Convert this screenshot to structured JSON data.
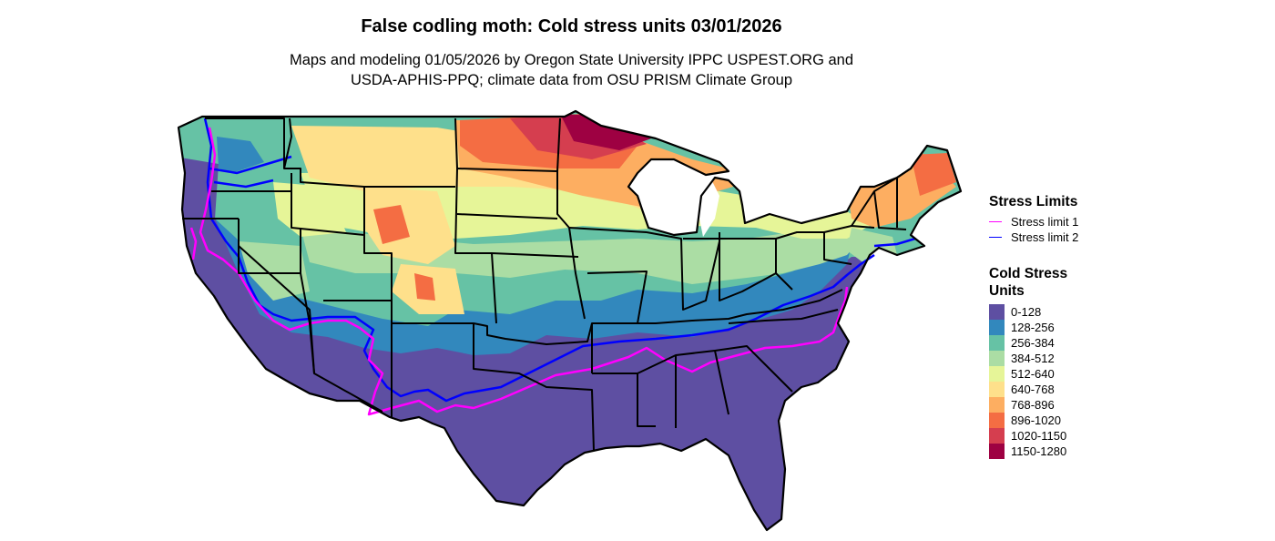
{
  "title": "False codling moth: Cold stress units 03/01/2026",
  "subtitle_line1": "Maps and modeling 01/05/2026 by Oregon State University IPPC USPEST.ORG and",
  "subtitle_line2": "USDA-APHIS-PPQ; climate data from OSU PRISM Climate Group",
  "legend": {
    "limits_title": "Stress Limits",
    "limits": [
      {
        "label": "Stress limit 1",
        "color": "#ff00ff"
      },
      {
        "label": "Stress limit 2",
        "color": "#0000ff"
      }
    ],
    "units_title": "Cold Stress Units",
    "classes": [
      {
        "label": "0-128",
        "color": "#5e4fa2"
      },
      {
        "label": "128-256",
        "color": "#3288bd"
      },
      {
        "label": "256-384",
        "color": "#66c2a5"
      },
      {
        "label": "384-512",
        "color": "#abdda4"
      },
      {
        "label": "512-640",
        "color": "#e6f598"
      },
      {
        "label": "640-768",
        "color": "#fee08b"
      },
      {
        "label": "768-896",
        "color": "#fdae61"
      },
      {
        "label": "896-1020",
        "color": "#f46d43"
      },
      {
        "label": "1020-1150",
        "color": "#d53e4f"
      },
      {
        "label": "1150-1280",
        "color": "#9e0142"
      }
    ]
  }
}
